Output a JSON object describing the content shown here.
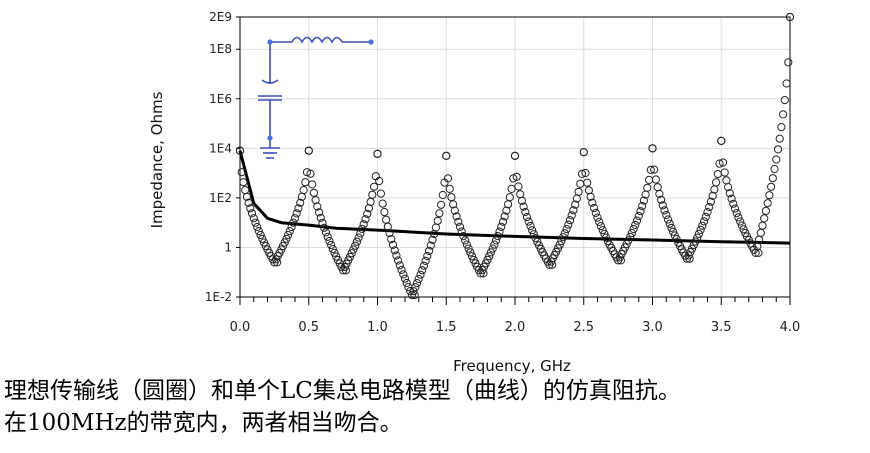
{
  "chart_data": {
    "type": "scatter",
    "xlabel": "Frequency, GHz",
    "ylabel": "Impedance, Ohms",
    "xlim": [
      0.0,
      4.0
    ],
    "ylim_log10": [
      -2,
      9.301
    ],
    "y_scale": "log",
    "grid": true,
    "x_ticks": [
      "0.0",
      "0.5",
      "1.0",
      "1.5",
      "2.0",
      "2.5",
      "3.0",
      "3.5",
      "4.0"
    ],
    "x_tick_values": [
      0.0,
      0.5,
      1.0,
      1.5,
      2.0,
      2.5,
      3.0,
      3.5,
      4.0
    ],
    "y_ticks": [
      "2E9",
      "1E8",
      "1E6",
      "1E4",
      "1E2",
      "1",
      "1E-2"
    ],
    "y_tick_values": [
      2000000000,
      100000000,
      1000000,
      10000,
      100,
      1,
      0.01
    ],
    "series": [
      {
        "marker": "circle",
        "style": "open-circles",
        "peaks_ghz": [
          0.0,
          0.5,
          1.0,
          1.5,
          2.0,
          2.5,
          3.0,
          3.5,
          4.0
        ],
        "peak_values": [
          8000,
          8000,
          6000,
          5000,
          5000,
          7000,
          10000,
          20000,
          2000000000
        ],
        "dips_ghz": [
          0.25,
          0.75,
          1.25,
          1.75,
          2.25,
          2.75,
          3.25,
          3.75
        ],
        "dip_values": [
          0.25,
          0.12,
          0.012,
          0.09,
          0.2,
          0.3,
          0.35,
          0.6
        ]
      },
      {
        "style": "solid-line",
        "x": [
          0.0,
          0.1,
          0.2,
          0.3,
          0.5,
          0.7,
          1.0,
          1.5,
          2.0,
          2.5,
          3.0,
          3.5,
          4.0
        ],
        "y": [
          8000,
          60,
          15,
          10,
          8,
          6,
          5,
          3.5,
          2.8,
          2.3,
          2.0,
          1.7,
          1.5
        ]
      }
    ],
    "inset": "lc-circuit-schematic"
  },
  "captions": {
    "line1": "理想传输线（圆圈）和单个LC集总电路模型（曲线）的仿真阻抗。",
    "line2": "在100MHz的带宽内，两者相当吻合。"
  },
  "colors": {
    "markers": "#222222",
    "grid": "#dddddd",
    "circuit": "#3b4fc0"
  }
}
